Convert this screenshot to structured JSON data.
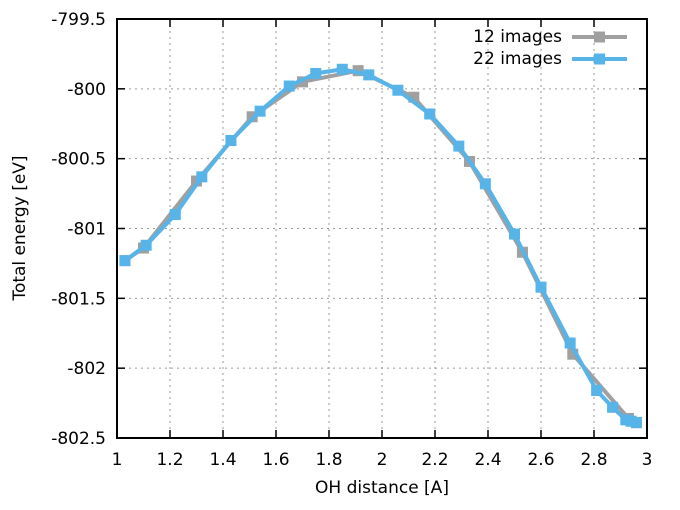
{
  "app": {
    "background": "#ffffff",
    "text_color": "#000000",
    "grid_color": "#999999",
    "border_color": "#000000"
  },
  "chart_data": {
    "type": "line",
    "title": "",
    "xlabel": "OH distance [A]",
    "ylabel": "Total energy [eV]",
    "xlim": [
      1,
      3
    ],
    "ylim": [
      -802.5,
      -799.5
    ],
    "grid": true,
    "legend_position": "top-right-inside",
    "xticks": {
      "values": [
        1,
        1.2,
        1.4,
        1.6,
        1.8,
        2,
        2.2,
        2.4,
        2.6,
        2.8,
        3
      ],
      "labels": [
        "1",
        "1.2",
        "1.4",
        "1.6",
        "1.8",
        "2",
        "2.2",
        "2.4",
        "2.6",
        "2.8",
        "3"
      ]
    },
    "yticks": {
      "values": [
        -799.5,
        -800,
        -800.5,
        -801,
        -801.5,
        -802,
        -802.5
      ],
      "labels": [
        "-799.5",
        "-800",
        "-800.5",
        "-801",
        "-801.5",
        "-802",
        "-802.5"
      ]
    },
    "series": [
      {
        "name": "12 images",
        "color": "#a0a0a0",
        "marker": "square",
        "x": [
          1.03,
          1.1,
          1.3,
          1.51,
          1.7,
          1.91,
          2.12,
          2.33,
          2.53,
          2.72,
          2.93,
          2.96
        ],
        "y": [
          -801.23,
          -801.14,
          -800.66,
          -800.2,
          -799.95,
          -799.87,
          -800.06,
          -800.52,
          -801.17,
          -801.9,
          -802.36,
          -802.39
        ]
      },
      {
        "name": "22 images",
        "color": "#56b4e9",
        "marker": "square",
        "x": [
          1.03,
          1.11,
          1.22,
          1.32,
          1.43,
          1.54,
          1.65,
          1.75,
          1.85,
          1.95,
          2.06,
          2.18,
          2.29,
          2.39,
          2.5,
          2.6,
          2.71,
          2.81,
          2.87,
          2.92,
          2.94,
          2.96
        ],
        "y": [
          -801.23,
          -801.12,
          -800.9,
          -800.63,
          -800.37,
          -800.16,
          -799.98,
          -799.89,
          -799.86,
          -799.9,
          -800.01,
          -800.18,
          -800.41,
          -800.68,
          -801.04,
          -801.42,
          -801.82,
          -802.16,
          -802.28,
          -802.37,
          -802.38,
          -802.39
        ]
      }
    ]
  }
}
